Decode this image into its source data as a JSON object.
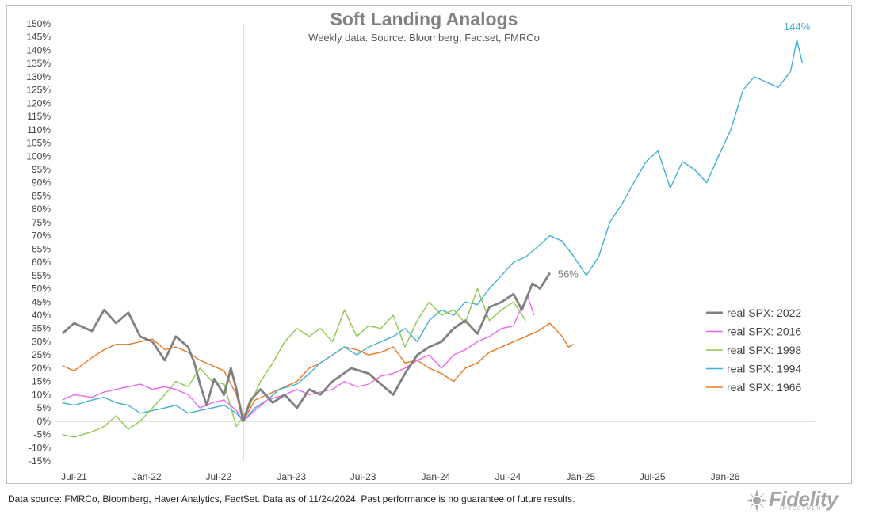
{
  "chart_data": {
    "type": "line",
    "title": "Soft Landing Analogs",
    "subtitle": "Weekly data.  Source: Bloomberg, Factset, FMRCo",
    "y_ticks": [
      "150%",
      "145%",
      "140%",
      "135%",
      "130%",
      "125%",
      "120%",
      "115%",
      "110%",
      "105%",
      "100%",
      "95%",
      "90%",
      "85%",
      "80%",
      "75%",
      "70%",
      "65%",
      "60%",
      "55%",
      "50%",
      "45%",
      "40%",
      "35%",
      "30%",
      "25%",
      "20%",
      "15%",
      "10%",
      "5%",
      "0%",
      "-5%",
      "-10%",
      "-15%"
    ],
    "ylim": [
      -15,
      150
    ],
    "x_ticks": [
      "Jul-21",
      "Jan-22",
      "Jul-22",
      "Jan-23",
      "Jul-23",
      "Jan-24",
      "Jul-24",
      "Jan-25",
      "Jul-25",
      "Jan-26"
    ],
    "xlim": [
      "2021-05-15",
      "2026-08-15"
    ],
    "vertical_marker": "2022-09-01",
    "series": [
      {
        "name": "real SPX: 2022",
        "color": "#808080",
        "points": [
          [
            "2021-06-01",
            33
          ],
          [
            "2021-07-01",
            37
          ],
          [
            "2021-08-15",
            34
          ],
          [
            "2021-09-15",
            42
          ],
          [
            "2021-10-15",
            37
          ],
          [
            "2021-11-15",
            41
          ],
          [
            "2021-12-15",
            32
          ],
          [
            "2022-01-15",
            30
          ],
          [
            "2022-02-15",
            23
          ],
          [
            "2022-03-15",
            32
          ],
          [
            "2022-04-15",
            28
          ],
          [
            "2022-05-01",
            22
          ],
          [
            "2022-05-15",
            14
          ],
          [
            "2022-06-01",
            6
          ],
          [
            "2022-06-20",
            16
          ],
          [
            "2022-07-15",
            10
          ],
          [
            "2022-08-01",
            20
          ],
          [
            "2022-08-15",
            12
          ],
          [
            "2022-09-01",
            0
          ],
          [
            "2022-09-20",
            8
          ],
          [
            "2022-10-15",
            12
          ],
          [
            "2022-11-15",
            7
          ],
          [
            "2022-12-15",
            10
          ],
          [
            "2023-01-15",
            5
          ],
          [
            "2023-02-15",
            12
          ],
          [
            "2023-03-15",
            10
          ],
          [
            "2023-04-15",
            15
          ],
          [
            "2023-06-01",
            20
          ],
          [
            "2023-07-15",
            18
          ],
          [
            "2023-08-15",
            14
          ],
          [
            "2023-09-15",
            10
          ],
          [
            "2023-10-15",
            18
          ],
          [
            "2023-11-15",
            25
          ],
          [
            "2023-12-15",
            28
          ],
          [
            "2024-01-15",
            30
          ],
          [
            "2024-02-15",
            35
          ],
          [
            "2024-03-15",
            38
          ],
          [
            "2024-04-15",
            33
          ],
          [
            "2024-05-15",
            43
          ],
          [
            "2024-06-15",
            45
          ],
          [
            "2024-07-15",
            48
          ],
          [
            "2024-08-05",
            42
          ],
          [
            "2024-09-01",
            52
          ],
          [
            "2024-09-20",
            50
          ],
          [
            "2024-10-15",
            56
          ]
        ]
      },
      {
        "name": "real SPX: 2016",
        "color": "#ee66ee",
        "points": [
          [
            "2021-06-01",
            8
          ],
          [
            "2021-07-01",
            10
          ],
          [
            "2021-08-15",
            9
          ],
          [
            "2021-09-15",
            11
          ],
          [
            "2021-10-15",
            12
          ],
          [
            "2021-11-15",
            13
          ],
          [
            "2021-12-15",
            14
          ],
          [
            "2022-01-15",
            12
          ],
          [
            "2022-02-15",
            13
          ],
          [
            "2022-03-15",
            12
          ],
          [
            "2022-04-15",
            10
          ],
          [
            "2022-05-15",
            5
          ],
          [
            "2022-06-15",
            7
          ],
          [
            "2022-07-15",
            8
          ],
          [
            "2022-08-15",
            4
          ],
          [
            "2022-09-01",
            0
          ],
          [
            "2022-10-01",
            4
          ],
          [
            "2022-11-01",
            8
          ],
          [
            "2022-12-15",
            10
          ],
          [
            "2023-01-15",
            12
          ],
          [
            "2023-02-15",
            10
          ],
          [
            "2023-03-15",
            11
          ],
          [
            "2023-04-15",
            12
          ],
          [
            "2023-05-15",
            15
          ],
          [
            "2023-06-15",
            13
          ],
          [
            "2023-07-15",
            14
          ],
          [
            "2023-08-15",
            17
          ],
          [
            "2023-09-15",
            18
          ],
          [
            "2023-10-15",
            20
          ],
          [
            "2023-11-15",
            23
          ],
          [
            "2023-12-15",
            25
          ],
          [
            "2024-01-15",
            20
          ],
          [
            "2024-02-15",
            25
          ],
          [
            "2024-03-15",
            27
          ],
          [
            "2024-04-15",
            30
          ],
          [
            "2024-05-15",
            32
          ],
          [
            "2024-06-15",
            35
          ],
          [
            "2024-07-15",
            36
          ],
          [
            "2024-08-01",
            42
          ],
          [
            "2024-08-20",
            47
          ],
          [
            "2024-09-05",
            40
          ]
        ]
      },
      {
        "name": "real SPX: 1998",
        "color": "#8cc94f",
        "points": [
          [
            "2021-06-01",
            -5
          ],
          [
            "2021-07-01",
            -6
          ],
          [
            "2021-08-15",
            -4
          ],
          [
            "2021-09-15",
            -2
          ],
          [
            "2021-10-15",
            2
          ],
          [
            "2021-11-15",
            -3
          ],
          [
            "2021-12-15",
            0
          ],
          [
            "2022-01-15",
            5
          ],
          [
            "2022-02-15",
            10
          ],
          [
            "2022-03-15",
            15
          ],
          [
            "2022-04-15",
            13
          ],
          [
            "2022-05-15",
            20
          ],
          [
            "2022-06-15",
            15
          ],
          [
            "2022-07-15",
            14
          ],
          [
            "2022-08-15",
            -2
          ],
          [
            "2022-09-15",
            5
          ],
          [
            "2022-10-15",
            15
          ],
          [
            "2022-11-15",
            22
          ],
          [
            "2022-12-15",
            30
          ],
          [
            "2023-01-15",
            35
          ],
          [
            "2023-02-15",
            32
          ],
          [
            "2023-03-15",
            35
          ],
          [
            "2023-04-15",
            30
          ],
          [
            "2023-05-15",
            42
          ],
          [
            "2023-06-15",
            32
          ],
          [
            "2023-07-15",
            36
          ],
          [
            "2023-08-15",
            35
          ],
          [
            "2023-09-15",
            40
          ],
          [
            "2023-10-15",
            28
          ],
          [
            "2023-11-15",
            38
          ],
          [
            "2023-12-15",
            45
          ],
          [
            "2024-01-15",
            40
          ],
          [
            "2024-02-15",
            42
          ],
          [
            "2024-03-15",
            37
          ],
          [
            "2024-04-15",
            50
          ],
          [
            "2024-05-15",
            38
          ],
          [
            "2024-06-15",
            42
          ],
          [
            "2024-07-15",
            45
          ],
          [
            "2024-08-15",
            38
          ]
        ]
      },
      {
        "name": "real SPX: 1994",
        "color": "#3fb1d3",
        "points": [
          [
            "2021-06-01",
            7
          ],
          [
            "2021-07-01",
            6
          ],
          [
            "2021-08-15",
            8
          ],
          [
            "2021-09-15",
            9
          ],
          [
            "2021-10-15",
            7
          ],
          [
            "2021-11-15",
            6
          ],
          [
            "2021-12-15",
            3
          ],
          [
            "2022-01-15",
            4
          ],
          [
            "2022-02-15",
            5
          ],
          [
            "2022-03-15",
            6
          ],
          [
            "2022-04-15",
            3
          ],
          [
            "2022-05-15",
            4
          ],
          [
            "2022-06-15",
            5
          ],
          [
            "2022-07-15",
            6
          ],
          [
            "2022-08-15",
            3
          ],
          [
            "2022-09-01",
            0
          ],
          [
            "2022-10-01",
            5
          ],
          [
            "2022-11-01",
            8
          ],
          [
            "2022-12-01",
            12
          ],
          [
            "2023-01-15",
            14
          ],
          [
            "2023-02-15",
            18
          ],
          [
            "2023-03-15",
            22
          ],
          [
            "2023-04-15",
            25
          ],
          [
            "2023-05-15",
            28
          ],
          [
            "2023-06-15",
            25
          ],
          [
            "2023-07-15",
            28
          ],
          [
            "2023-08-15",
            30
          ],
          [
            "2023-09-15",
            32
          ],
          [
            "2023-10-15",
            35
          ],
          [
            "2023-11-15",
            30
          ],
          [
            "2023-12-15",
            38
          ],
          [
            "2024-01-15",
            42
          ],
          [
            "2024-02-15",
            40
          ],
          [
            "2024-03-15",
            45
          ],
          [
            "2024-04-15",
            44
          ],
          [
            "2024-05-15",
            50
          ],
          [
            "2024-06-15",
            55
          ],
          [
            "2024-07-15",
            60
          ],
          [
            "2024-08-15",
            62
          ],
          [
            "2024-09-15",
            66
          ],
          [
            "2024-10-15",
            70
          ],
          [
            "2024-11-15",
            68
          ],
          [
            "2024-12-15",
            62
          ],
          [
            "2025-01-15",
            55
          ],
          [
            "2025-02-15",
            62
          ],
          [
            "2025-03-15",
            75
          ],
          [
            "2025-04-15",
            82
          ],
          [
            "2025-05-15",
            90
          ],
          [
            "2025-06-15",
            98
          ],
          [
            "2025-07-15",
            102
          ],
          [
            "2025-08-15",
            88
          ],
          [
            "2025-09-15",
            98
          ],
          [
            "2025-10-15",
            95
          ],
          [
            "2025-11-15",
            90
          ],
          [
            "2025-12-15",
            100
          ],
          [
            "2026-01-15",
            110
          ],
          [
            "2026-02-15",
            125
          ],
          [
            "2026-03-15",
            130
          ],
          [
            "2026-04-15",
            128
          ],
          [
            "2026-05-15",
            126
          ],
          [
            "2026-06-15",
            132
          ],
          [
            "2026-07-01",
            144
          ],
          [
            "2026-07-15",
            135
          ]
        ]
      },
      {
        "name": "real SPX: 1966",
        "color": "#e87722",
        "points": [
          [
            "2021-06-01",
            21
          ],
          [
            "2021-07-01",
            19
          ],
          [
            "2021-08-15",
            24
          ],
          [
            "2021-09-15",
            27
          ],
          [
            "2021-10-15",
            29
          ],
          [
            "2021-11-15",
            29
          ],
          [
            "2021-12-15",
            30
          ],
          [
            "2022-01-15",
            31
          ],
          [
            "2022-02-15",
            27
          ],
          [
            "2022-03-15",
            28
          ],
          [
            "2022-04-15",
            26
          ],
          [
            "2022-05-15",
            23
          ],
          [
            "2022-06-15",
            21
          ],
          [
            "2022-07-15",
            19
          ],
          [
            "2022-08-15",
            10
          ],
          [
            "2022-09-01",
            0
          ],
          [
            "2022-10-01",
            8
          ],
          [
            "2022-11-01",
            10
          ],
          [
            "2022-12-01",
            12
          ],
          [
            "2023-01-15",
            15
          ],
          [
            "2023-02-15",
            20
          ],
          [
            "2023-03-15",
            22
          ],
          [
            "2023-04-15",
            25
          ],
          [
            "2023-05-15",
            28
          ],
          [
            "2023-06-15",
            27
          ],
          [
            "2023-07-15",
            25
          ],
          [
            "2023-08-15",
            26
          ],
          [
            "2023-09-15",
            28
          ],
          [
            "2023-10-15",
            22
          ],
          [
            "2023-11-15",
            23
          ],
          [
            "2023-12-15",
            20
          ],
          [
            "2024-01-15",
            18
          ],
          [
            "2024-02-15",
            15
          ],
          [
            "2024-03-15",
            20
          ],
          [
            "2024-04-15",
            22
          ],
          [
            "2024-05-15",
            26
          ],
          [
            "2024-06-15",
            28
          ],
          [
            "2024-07-15",
            30
          ],
          [
            "2024-08-15",
            32
          ],
          [
            "2024-09-15",
            34
          ],
          [
            "2024-10-15",
            37
          ],
          [
            "2024-11-15",
            32
          ],
          [
            "2024-12-01",
            28
          ],
          [
            "2024-12-15",
            29
          ]
        ]
      }
    ],
    "annotations": [
      {
        "text": "144%",
        "series": "real SPX: 1994",
        "x": "2026-07-01",
        "y": 144,
        "color": "#3fb1d3"
      },
      {
        "text": "56%",
        "series": "real SPX: 2022",
        "x": "2024-10-15",
        "y": 56,
        "color": "#808080"
      }
    ],
    "legend_placement": "right",
    "grid": false
  },
  "footer": {
    "note": "Data source: FMRCo, Bloomberg, Haver Analytics, FactSet. Data as of 11/24/2024. Past performance is no guarantee of future results."
  },
  "brand": {
    "name": "Fidelity",
    "subtitle": "INVESTMENTS"
  }
}
